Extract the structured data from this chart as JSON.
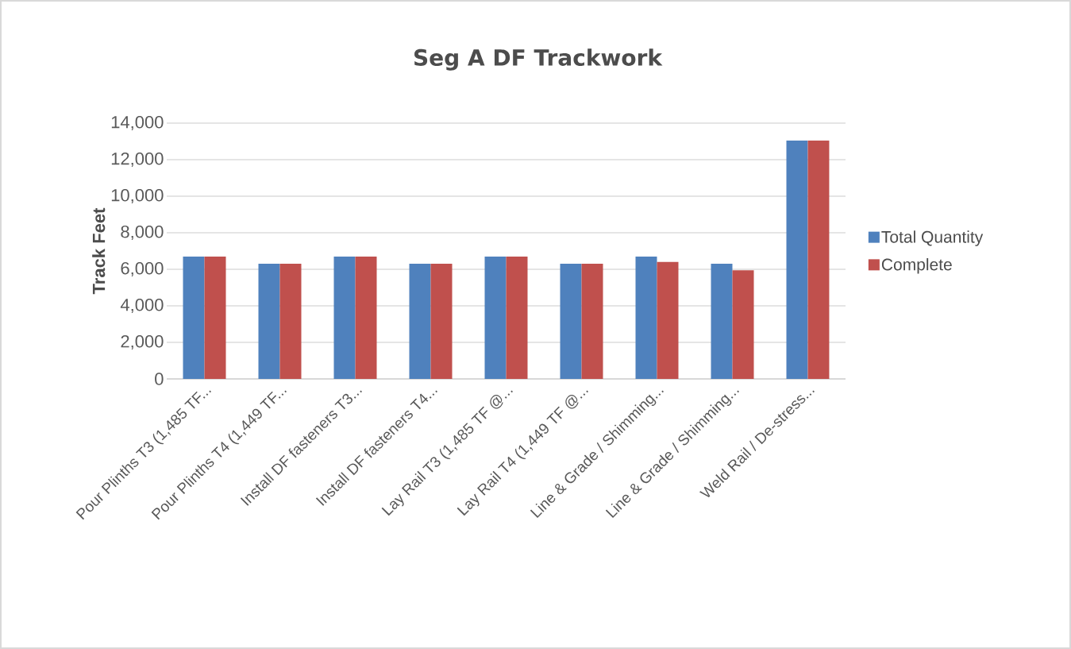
{
  "chart_data": {
    "type": "bar",
    "title": "Seg A DF Trackwork",
    "ylabel": "Track Feet",
    "categories": [
      "Pour Plinths T3 (1,485 TF...",
      "Pour Plinths T4 (1,449 TF...",
      "Install DF fasteners T3...",
      "Install DF fasteners T4...",
      "Lay Rail T3 (1,485 TF @...",
      "Lay Rail T4 (1,449 TF @...",
      "Line & Grade / Shimming...",
      "Line & Grade / Shimming...",
      "Weld Rail / De-stress..."
    ],
    "series": [
      {
        "name": "Total Quantity",
        "color": "#4f81bd",
        "values": [
          6700,
          6300,
          6700,
          6300,
          6700,
          6300,
          6700,
          6300,
          13050
        ]
      },
      {
        "name": "Complete",
        "color": "#c0504d",
        "values": [
          6700,
          6300,
          6700,
          6300,
          6700,
          6300,
          6400,
          5950,
          13050
        ]
      }
    ],
    "ylim": [
      0,
      14000
    ],
    "yticks": [
      {
        "value": 0,
        "label": "0"
      },
      {
        "value": 2000,
        "label": "2,000"
      },
      {
        "value": 4000,
        "label": "4,000"
      },
      {
        "value": 6000,
        "label": "6,000"
      },
      {
        "value": 8000,
        "label": "8,000"
      },
      {
        "value": 10000,
        "label": "10,000"
      },
      {
        "value": 12000,
        "label": "12,000"
      },
      {
        "value": 14000,
        "label": "14,000"
      }
    ],
    "grid": "y",
    "legend": "right"
  }
}
